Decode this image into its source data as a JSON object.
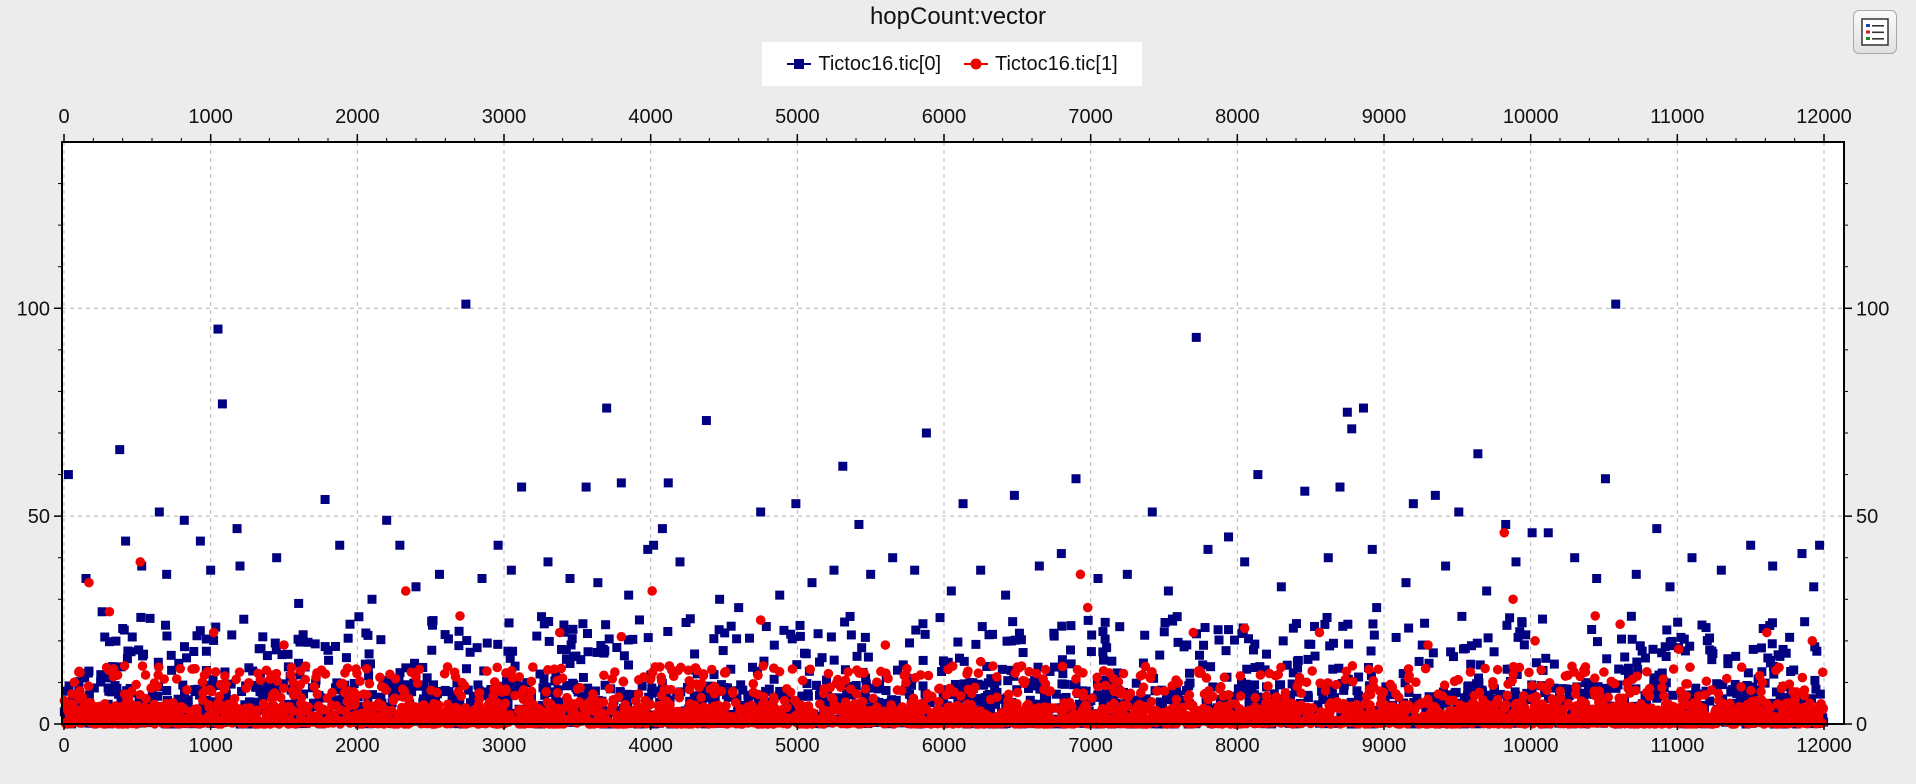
{
  "chart_data": {
    "type": "scatter",
    "title": "hopCount:vector",
    "xlabel": "",
    "ylabel": "",
    "xlim": [
      0,
      12000
    ],
    "ylim": [
      0,
      140
    ],
    "x_ticks": [
      0,
      1000,
      2000,
      3000,
      4000,
      5000,
      6000,
      7000,
      8000,
      9000,
      10000,
      11000,
      12000
    ],
    "y_ticks": [
      0,
      50,
      100
    ],
    "grid": true,
    "legend_position": "top-center",
    "series": [
      {
        "name": "Tictoc16.tic[0]",
        "color": "#000080",
        "marker": "square",
        "points": [
          [
            30,
            60
          ],
          [
            380,
            66
          ],
          [
            420,
            44
          ],
          [
            650,
            51
          ],
          [
            820,
            49
          ],
          [
            930,
            44
          ],
          [
            1050,
            95
          ],
          [
            1080,
            77
          ],
          [
            1180,
            47
          ],
          [
            1780,
            54
          ],
          [
            1880,
            43
          ],
          [
            2200,
            49
          ],
          [
            2290,
            43
          ],
          [
            2740,
            101
          ],
          [
            2960,
            43
          ],
          [
            3120,
            57
          ],
          [
            3560,
            57
          ],
          [
            3700,
            76
          ],
          [
            3800,
            58
          ],
          [
            3980,
            42
          ],
          [
            4020,
            43
          ],
          [
            4080,
            47
          ],
          [
            4120,
            58
          ],
          [
            4380,
            73
          ],
          [
            4750,
            51
          ],
          [
            4990,
            53
          ],
          [
            5310,
            62
          ],
          [
            5420,
            48
          ],
          [
            5880,
            70
          ],
          [
            6130,
            53
          ],
          [
            6480,
            55
          ],
          [
            6900,
            59
          ],
          [
            7420,
            51
          ],
          [
            7720,
            93
          ],
          [
            7940,
            45
          ],
          [
            8140,
            60
          ],
          [
            8460,
            56
          ],
          [
            8700,
            57
          ],
          [
            8750,
            75
          ],
          [
            8780,
            71
          ],
          [
            8860,
            76
          ],
          [
            8920,
            42
          ],
          [
            9200,
            53
          ],
          [
            9350,
            55
          ],
          [
            9510,
            51
          ],
          [
            9640,
            65
          ],
          [
            9830,
            48
          ],
          [
            10010,
            46
          ],
          [
            10120,
            46
          ],
          [
            10510,
            59
          ],
          [
            10580,
            101
          ],
          [
            10860,
            47
          ],
          [
            11500,
            43
          ],
          [
            11970,
            43
          ],
          [
            150,
            35
          ],
          [
            260,
            27
          ],
          [
            530,
            38
          ],
          [
            700,
            36
          ],
          [
            1000,
            37
          ],
          [
            1200,
            38
          ],
          [
            1450,
            40
          ],
          [
            1600,
            29
          ],
          [
            1950,
            24
          ],
          [
            2100,
            30
          ],
          [
            2400,
            33
          ],
          [
            2560,
            36
          ],
          [
            2850,
            35
          ],
          [
            3050,
            37
          ],
          [
            3300,
            39
          ],
          [
            3450,
            35
          ],
          [
            3640,
            34
          ],
          [
            3850,
            31
          ],
          [
            4200,
            39
          ],
          [
            4470,
            30
          ],
          [
            4600,
            28
          ],
          [
            4880,
            31
          ],
          [
            5100,
            34
          ],
          [
            5250,
            37
          ],
          [
            5500,
            36
          ],
          [
            5650,
            40
          ],
          [
            5800,
            37
          ],
          [
            6050,
            32
          ],
          [
            6250,
            37
          ],
          [
            6420,
            31
          ],
          [
            6650,
            38
          ],
          [
            6800,
            41
          ],
          [
            7050,
            35
          ],
          [
            7250,
            36
          ],
          [
            7530,
            32
          ],
          [
            7800,
            42
          ],
          [
            8050,
            39
          ],
          [
            8300,
            33
          ],
          [
            8620,
            40
          ],
          [
            8950,
            28
          ],
          [
            9150,
            34
          ],
          [
            9420,
            38
          ],
          [
            9700,
            32
          ],
          [
            9900,
            39
          ],
          [
            10300,
            40
          ],
          [
            10450,
            35
          ],
          [
            10720,
            36
          ],
          [
            10950,
            33
          ],
          [
            11100,
            40
          ],
          [
            11300,
            37
          ],
          [
            11650,
            38
          ],
          [
            11850,
            41
          ],
          [
            11930,
            33
          ]
        ]
      },
      {
        "name": "Tictoc16.tic[1]",
        "color": "#ee0000",
        "marker": "circle",
        "points": [
          [
            170,
            34
          ],
          [
            310,
            27
          ],
          [
            520,
            39
          ],
          [
            1020,
            22
          ],
          [
            1500,
            19
          ],
          [
            2330,
            32
          ],
          [
            2700,
            26
          ],
          [
            3380,
            22
          ],
          [
            3800,
            21
          ],
          [
            4010,
            32
          ],
          [
            4750,
            25
          ],
          [
            5600,
            19
          ],
          [
            6250,
            15
          ],
          [
            6930,
            36
          ],
          [
            6980,
            28
          ],
          [
            7700,
            22
          ],
          [
            8050,
            23
          ],
          [
            8560,
            22
          ],
          [
            9300,
            19
          ],
          [
            9820,
            46
          ],
          [
            9880,
            30
          ],
          [
            10030,
            20
          ],
          [
            10440,
            26
          ],
          [
            10610,
            24
          ],
          [
            11010,
            18
          ],
          [
            11610,
            22
          ],
          [
            11920,
            20
          ]
        ]
      }
    ],
    "dense_bands": [
      {
        "series": 0,
        "ymax": 26,
        "count": 1000
      },
      {
        "series": 0,
        "ymax": 10,
        "count": 1000
      },
      {
        "series": 1,
        "ymax": 14,
        "count": 1300
      },
      {
        "series": 1,
        "ymax": 5,
        "count": 1600
      }
    ]
  },
  "ui": {
    "options_icon": "list-icon"
  }
}
